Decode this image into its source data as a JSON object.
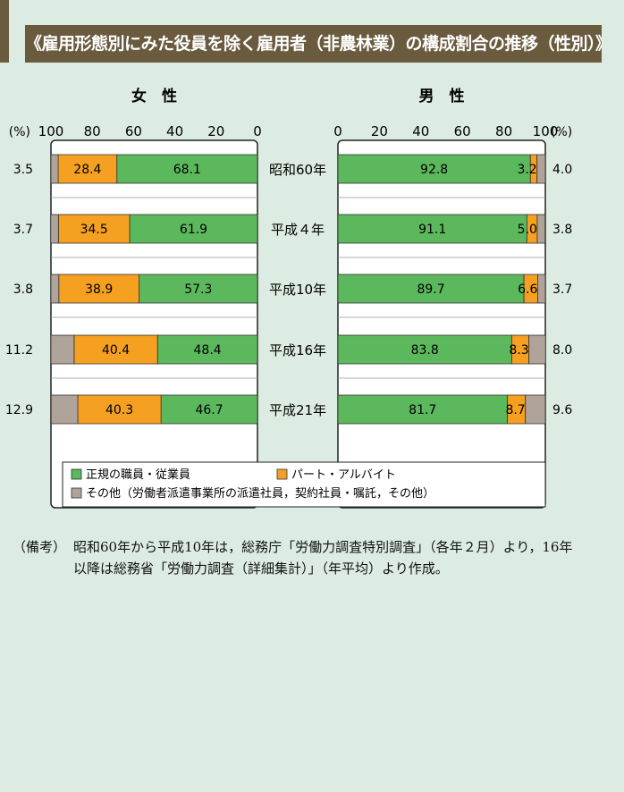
{
  "title": "《雇用形態別にみた役員を除く雇用者（非農林業）の構成割合の推移（性別）》",
  "chart_data": {
    "type": "bar",
    "stacked": true,
    "horizontal": true,
    "categories": [
      "昭和60年",
      "平成４年",
      "平成10年",
      "平成16年",
      "平成21年"
    ],
    "panels": [
      {
        "title": "女　性",
        "direction": "right-to-left",
        "xlim": [
          0,
          100
        ],
        "ticks": [
          "100",
          "80",
          "60",
          "40",
          "20",
          "0"
        ],
        "unit": "(%)",
        "series": [
          {
            "name": "正規の職員・従業員",
            "values": [
              68.1,
              61.9,
              57.3,
              48.4,
              46.7
            ]
          },
          {
            "name": "パート・アルバイト",
            "values": [
              28.4,
              34.5,
              38.9,
              40.4,
              40.3
            ]
          },
          {
            "name": "その他（労働者派遣事業所の派遣社員，契約社員・嘱託，その他）",
            "values": [
              3.5,
              3.7,
              3.8,
              11.2,
              12.9
            ]
          }
        ]
      },
      {
        "title": "男　性",
        "direction": "left-to-right",
        "xlim": [
          0,
          100
        ],
        "ticks": [
          "0",
          "20",
          "40",
          "60",
          "80",
          "100"
        ],
        "unit": "(%)",
        "series": [
          {
            "name": "正規の職員・従業員",
            "values": [
              92.8,
              91.1,
              89.7,
              83.8,
              81.7
            ]
          },
          {
            "name": "パート・アルバイト",
            "values": [
              3.2,
              5.0,
              6.6,
              8.3,
              8.7
            ]
          },
          {
            "name": "その他（労働者派遣事業所の派遣社員，契約社員・嘱託，その他）",
            "values": [
              4.0,
              3.8,
              3.7,
              8.0,
              9.6
            ]
          }
        ]
      }
    ],
    "colors": {
      "regular": "#5cb85c",
      "parttime": "#f5a020",
      "other": "#b0a49a"
    },
    "legend": {
      "position": "bottom",
      "items": [
        {
          "label": "正規の職員・従業員",
          "color": "#5cb85c"
        },
        {
          "label": "パート・アルバイト",
          "color": "#f5a020"
        },
        {
          "label": "その他（労働者派遣事業所の派遣社員，契約社員・嘱託，その他）",
          "color": "#b0a49a"
        }
      ]
    }
  },
  "note": {
    "label": "（備考）",
    "text": "昭和60年から平成10年は，総務庁「労働力調査特別調査」（各年２月）より，16年以降は総務省「労働力調査（詳細集計）」（年平均）より作成。"
  }
}
